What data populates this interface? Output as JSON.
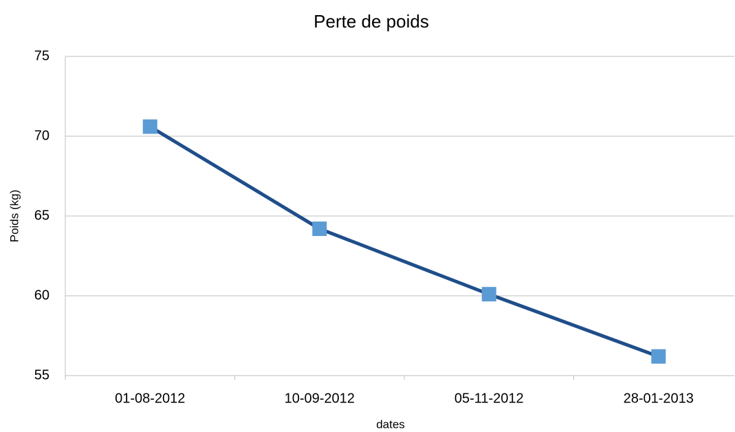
{
  "chart_data": {
    "type": "line",
    "title": "Perte de poids",
    "x_label": "dates",
    "y_label": "Poids (kg)",
    "categories": [
      "01-08-2012",
      "10-09-2012",
      "05-11-2012",
      "28-01-2013"
    ],
    "values": [
      70.6,
      64.2,
      60.1,
      56.2
    ],
    "color": "#1f4e8a",
    "marker_color": "#5b9bd5",
    "ylim": [
      55,
      75
    ],
    "yticks": [
      55,
      60,
      65,
      70,
      75
    ],
    "grid": true
  }
}
